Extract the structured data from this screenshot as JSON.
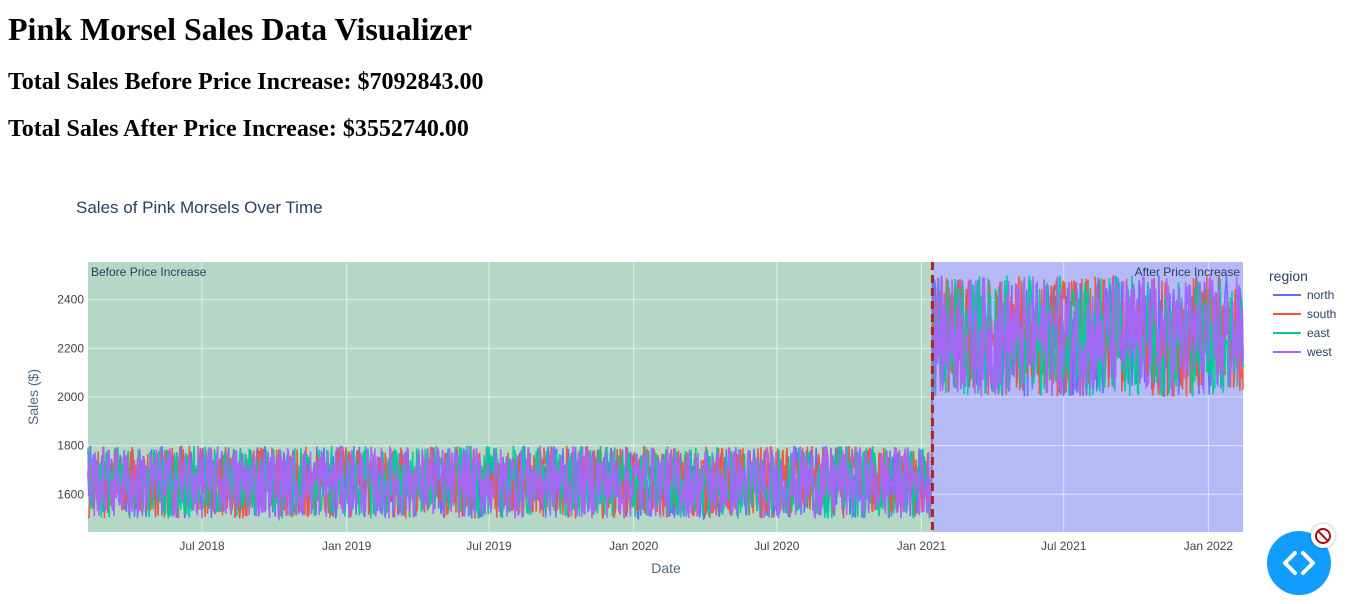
{
  "page": {
    "title": "Pink Morsel Sales Data Visualizer",
    "total_before": "Total Sales Before Price Increase: $7092843.00",
    "total_after": "Total Sales After Price Increase: $3552740.00"
  },
  "chart_data": {
    "type": "line",
    "title": "Sales of Pink Morsels Over Time",
    "xlabel": "Date",
    "ylabel": "Sales ($)",
    "x_range": [
      "2018-02-06",
      "2022-02-14"
    ],
    "ylim": [
      1445,
      2555
    ],
    "x_ticks": [
      {
        "date": "2018-07-01",
        "label": "Jul 2018"
      },
      {
        "date": "2019-01-01",
        "label": "Jan 2019"
      },
      {
        "date": "2019-07-01",
        "label": "Jul 2019"
      },
      {
        "date": "2020-01-01",
        "label": "Jan 2020"
      },
      {
        "date": "2020-07-01",
        "label": "Jul 2020"
      },
      {
        "date": "2021-01-01",
        "label": "Jan 2021"
      },
      {
        "date": "2021-07-01",
        "label": "Jul 2021"
      },
      {
        "date": "2022-01-01",
        "label": "Jan 2022"
      }
    ],
    "y_ticks": [
      1600,
      1800,
      2000,
      2200,
      2400
    ],
    "grid": true,
    "legend": {
      "title": "region",
      "placement": "right"
    },
    "series": [
      {
        "name": "north",
        "color": "#636efa",
        "before_range": [
          1500,
          1800
        ],
        "after_range": [
          2000,
          2500
        ]
      },
      {
        "name": "south",
        "color": "#ef553b",
        "before_range": [
          1500,
          1800
        ],
        "after_range": [
          2000,
          2500
        ]
      },
      {
        "name": "east",
        "color": "#00cc96",
        "before_range": [
          1500,
          1800
        ],
        "after_range": [
          2000,
          2500
        ]
      },
      {
        "name": "west",
        "color": "#ab63fa",
        "before_range": [
          1500,
          1800
        ],
        "after_range": [
          2000,
          2500
        ]
      }
    ],
    "price_increase_date": "2021-01-15",
    "price_increase_line_color": "#b22222",
    "regions": [
      {
        "label": "Before Price Increase",
        "from": "2018-02-06",
        "to": "2021-01-15",
        "fill": "#b5d8c6"
      },
      {
        "label": "After Price Increase",
        "from": "2021-01-15",
        "to": "2022-02-14",
        "fill": "#b4baf6"
      }
    ]
  }
}
